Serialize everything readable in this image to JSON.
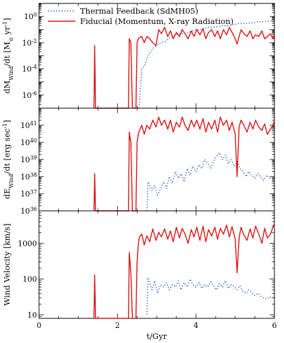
{
  "chart_data": [
    {
      "type": "line",
      "ylabel_main": "dM",
      "ylabel_sub": "Wind",
      "ylabel_rest": "/dt [M",
      "ylabel_unit": " yr",
      "ylabel_exp": "-1",
      "ylabel_close": "]",
      "yscale": "log",
      "ylim": [
        1e-07,
        10
      ],
      "y_ticks": [
        {
          "v": 1,
          "base": "10",
          "exp": "0"
        },
        {
          "v": 0.01,
          "base": "10",
          "exp": "-2"
        },
        {
          "v": 0.0001,
          "base": "10",
          "exp": "-4"
        },
        {
          "v": 1e-06,
          "base": "10",
          "exp": "-6"
        }
      ],
      "xlim": [
        0,
        6
      ],
      "series": [
        {
          "name": "Thermal Feedback (SdMH05)",
          "color": "#3366cc",
          "style": "dotted",
          "x": [
            2.55,
            2.62,
            2.7,
            2.78,
            2.85,
            2.92,
            3.0,
            3.1,
            3.2,
            3.3,
            3.4,
            3.5,
            3.6,
            3.7,
            3.8,
            3.9,
            4.0,
            4.1,
            4.2,
            4.3,
            4.4,
            4.5,
            4.6,
            4.7,
            4.8,
            4.9,
            5.0,
            5.1,
            5.2,
            5.3,
            5.4,
            5.5,
            5.6,
            5.7,
            5.8,
            5.9,
            6.0
          ],
          "y": [
            1e-07,
            0.0001,
            0.0002,
            0.001,
            0.002,
            0.004,
            0.006,
            0.01,
            0.012,
            0.02,
            0.03,
            0.04,
            0.05,
            0.05,
            0.06,
            0.08,
            0.1,
            0.1,
            0.12,
            0.15,
            0.15,
            0.16,
            0.18,
            0.2,
            0.2,
            0.22,
            0.25,
            0.3,
            0.3,
            0.3,
            0.32,
            0.35,
            0.4,
            0.4,
            0.42,
            0.45,
            0.5
          ]
        },
        {
          "name": "Fiducial (Momentum, X-ray Radiation)",
          "color": "#dd1111",
          "style": "solid",
          "x": [
            1.4,
            1.42,
            1.44,
            2.28,
            2.3,
            2.34,
            2.38,
            2.47,
            2.5,
            2.53,
            2.56,
            2.62,
            2.68,
            2.75,
            2.82,
            2.9,
            2.98,
            3.05,
            3.12,
            3.2,
            3.28,
            3.35,
            3.42,
            3.5,
            3.58,
            3.65,
            3.72,
            3.8,
            3.88,
            3.95,
            4.02,
            4.1,
            4.18,
            4.25,
            4.32,
            4.4,
            4.48,
            4.55,
            4.62,
            4.7,
            4.78,
            4.85,
            4.92,
            5.0,
            5.05,
            5.1,
            5.15,
            5.22,
            5.3,
            5.38,
            5.45,
            5.52,
            5.6,
            5.68,
            5.75,
            5.82,
            5.9,
            5.96,
            6.0
          ],
          "y": [
            1e-07,
            0.006,
            1e-07,
            1e-07,
            0.02,
            0.01,
            1e-07,
            1e-07,
            0.01,
            0.02,
            0.025,
            0.03,
            0.01,
            0.03,
            0.02,
            0.01,
            0.006,
            0.1,
            0.05,
            0.15,
            0.03,
            0.08,
            0.02,
            0.06,
            0.03,
            0.1,
            0.05,
            0.02,
            0.08,
            0.03,
            0.1,
            0.04,
            0.12,
            0.02,
            0.06,
            0.1,
            0.03,
            0.08,
            0.02,
            0.1,
            0.04,
            0.15,
            0.06,
            0.02,
            0.008,
            0.03,
            0.1,
            0.05,
            0.03,
            0.08,
            0.02,
            0.04,
            0.03,
            0.08,
            0.02,
            0.03,
            0.05,
            0.02,
            0.04
          ]
        }
      ]
    },
    {
      "type": "line",
      "ylabel_main": "dE",
      "ylabel_sub": "Wind",
      "ylabel_rest": "/dt [erg sec",
      "ylabel_exp": "-1",
      "ylabel_close": "]",
      "yscale": "log",
      "ylim": [
        1e+36,
        1e+42
      ],
      "y_ticks": [
        {
          "v": 1e+36,
          "base": "10",
          "exp": "36"
        },
        {
          "v": 1e+37,
          "base": "10",
          "exp": "37"
        },
        {
          "v": 1e+38,
          "base": "10",
          "exp": "38"
        },
        {
          "v": 1e+39,
          "base": "10",
          "exp": "39"
        },
        {
          "v": 1e+40,
          "base": "10",
          "exp": "40"
        },
        {
          "v": 1e+41,
          "base": "10",
          "exp": "41"
        }
      ],
      "xlim": [
        0,
        6
      ],
      "series": [
        {
          "name": "Thermal Feedback (SdMH05)",
          "color": "#3366cc",
          "style": "dotted",
          "x": [
            2.75,
            2.78,
            2.82,
            2.88,
            2.95,
            3.02,
            3.1,
            3.18,
            3.25,
            3.32,
            3.4,
            3.48,
            3.55,
            3.62,
            3.7,
            3.78,
            3.85,
            3.92,
            4.0,
            4.08,
            4.15,
            4.22,
            4.3,
            4.38,
            4.45,
            4.52,
            4.6,
            4.68,
            4.75,
            4.82,
            4.9,
            4.98,
            5.05,
            5.12,
            5.2,
            5.28,
            5.35,
            5.42,
            5.5,
            5.58,
            5.65,
            5.72,
            5.8,
            5.88,
            5.95,
            6.0
          ],
          "y": [
            1e+36,
            5e+37,
            3e+37,
            1.5e+37,
            3e+37,
            8e+36,
            2e+37,
            5e+37,
            2e+37,
            1e+38,
            4e+37,
            2e+38,
            8e+37,
            1.5e+38,
            5e+37,
            3e+38,
            1.2e+38,
            4e+38,
            2e+38,
            5e+38,
            3e+38,
            1e+39,
            6e+38,
            3e+38,
            8e+38,
            1.5e+39,
            2.5e+39,
            1e+39,
            1.8e+39,
            6e+38,
            1e+39,
            4e+38,
            8e+38,
            3e+38,
            2e+38,
            1e+38,
            2e+38,
            1.2e+38,
            8e+37,
            1.5e+38,
            1e+38,
            6e+37,
            1.2e+38,
            8e+37,
            1e+38,
            8e+37
          ]
        },
        {
          "name": "Fiducial (Momentum, X-ray Radiation)",
          "color": "#dd1111",
          "style": "solid",
          "x": [
            1.4,
            1.42,
            1.44,
            2.28,
            2.3,
            2.34,
            2.38,
            2.47,
            2.5,
            2.53,
            2.56,
            2.62,
            2.68,
            2.75,
            2.82,
            2.9,
            2.98,
            3.05,
            3.12,
            3.2,
            3.28,
            3.35,
            3.42,
            3.5,
            3.58,
            3.65,
            3.72,
            3.8,
            3.88,
            3.95,
            4.02,
            4.1,
            4.18,
            4.25,
            4.32,
            4.4,
            4.48,
            4.55,
            4.62,
            4.7,
            4.78,
            4.85,
            4.92,
            5.0,
            5.05,
            5.1,
            5.15,
            5.22,
            5.3,
            5.38,
            5.45,
            5.52,
            5.6,
            5.68,
            5.75,
            5.82,
            5.9,
            5.96,
            6.0
          ],
          "y": [
            1e+36,
            1.5e+38,
            1e+36,
            1e+36,
            4e+40,
            1e+40,
            1e+36,
            1e+36,
            1e+40,
            3e+40,
            5e+40,
            1e+41,
            3e+40,
            1e+41,
            6e+40,
            2e+41,
            8e+40,
            3e+41,
            1e+41,
            2e+41,
            6e+40,
            2e+41,
            4e+40,
            1.5e+41,
            8e+40,
            3e+41,
            1e+41,
            5e+40,
            2e+41,
            8e+40,
            2e+41,
            6e+40,
            2.5e+41,
            4e+40,
            1.5e+41,
            6e+40,
            2e+41,
            4e+40,
            3e+41,
            1e+41,
            2e+41,
            5e+40,
            1.5e+41,
            3e+40,
            1e+38,
            8e+40,
            2e+41,
            1e+41,
            4e+40,
            1.5e+41,
            6e+40,
            2e+41,
            8e+40,
            5e+40,
            1.2e+41,
            3e+40,
            6e+40,
            1e+41,
            2e+41
          ]
        }
      ]
    },
    {
      "type": "line",
      "ylabel_main": "Wind Velocity [km/s]",
      "yscale": "log",
      "ylim": [
        8,
        8000
      ],
      "y_ticks": [
        {
          "v": 10,
          "base": "10",
          "exp": ""
        },
        {
          "v": 100,
          "base": "100",
          "exp": ""
        },
        {
          "v": 1000,
          "base": "1000",
          "exp": ""
        }
      ],
      "xlim": [
        0,
        6
      ],
      "xlabel": "t/Gyr",
      "x_ticks": [
        "0",
        "2",
        "4",
        "6"
      ],
      "series": [
        {
          "name": "Thermal Feedback (SdMH05)",
          "color": "#3366cc",
          "style": "dotted",
          "x": [
            2.75,
            2.78,
            2.82,
            2.88,
            2.95,
            3.02,
            3.1,
            3.18,
            3.25,
            3.32,
            3.4,
            3.48,
            3.55,
            3.62,
            3.7,
            3.78,
            3.85,
            3.92,
            4.0,
            4.08,
            4.15,
            4.22,
            4.3,
            4.38,
            4.45,
            4.52,
            4.6,
            4.68,
            4.75,
            4.82,
            4.9,
            4.98,
            5.05,
            5.12,
            5.2,
            5.28,
            5.35,
            5.42,
            5.5,
            5.58,
            5.65,
            5.72,
            5.8,
            5.88,
            5.95,
            6.0
          ],
          "y": [
            10,
            110,
            80,
            50,
            90,
            40,
            70,
            60,
            80,
            50,
            70,
            60,
            90,
            50,
            80,
            60,
            100,
            70,
            60,
            80,
            55,
            70,
            60,
            85,
            65,
            50,
            75,
            60,
            90,
            55,
            70,
            60,
            50,
            65,
            45,
            40,
            50,
            42,
            35,
            40,
            33,
            30,
            28,
            32,
            30,
            32
          ]
        },
        {
          "name": "Fiducial (Momentum, X-ray Radiation)",
          "color": "#dd1111",
          "style": "solid",
          "x": [
            1.4,
            1.42,
            1.44,
            2.28,
            2.3,
            2.34,
            2.38,
            2.47,
            2.5,
            2.53,
            2.56,
            2.62,
            2.68,
            2.75,
            2.82,
            2.9,
            2.98,
            3.05,
            3.12,
            3.2,
            3.28,
            3.35,
            3.42,
            3.5,
            3.58,
            3.65,
            3.72,
            3.8,
            3.88,
            3.95,
            4.02,
            4.1,
            4.18,
            4.25,
            4.32,
            4.4,
            4.48,
            4.55,
            4.62,
            4.7,
            4.78,
            4.85,
            4.92,
            5.0,
            5.05,
            5.1,
            5.15,
            5.22,
            5.3,
            5.38,
            5.45,
            5.52,
            5.6,
            5.68,
            5.75,
            5.82,
            5.9,
            5.96,
            6.0
          ],
          "y": [
            8,
            130,
            8,
            8,
            550,
            150,
            8,
            8,
            300,
            900,
            1500,
            1800,
            900,
            1600,
            1100,
            2500,
            1200,
            2000,
            1500,
            2500,
            1300,
            2200,
            1100,
            2800,
            1400,
            2600,
            1800,
            1000,
            2400,
            1500,
            2800,
            1200,
            3000,
            1100,
            2400,
            1600,
            2800,
            1300,
            2600,
            1800,
            3200,
            1500,
            2900,
            1300,
            150,
            1400,
            2800,
            1700,
            1200,
            2500,
            1400,
            3000,
            1800,
            1000,
            2600,
            1400,
            1800,
            2800,
            3500
          ]
        }
      ]
    }
  ]
}
